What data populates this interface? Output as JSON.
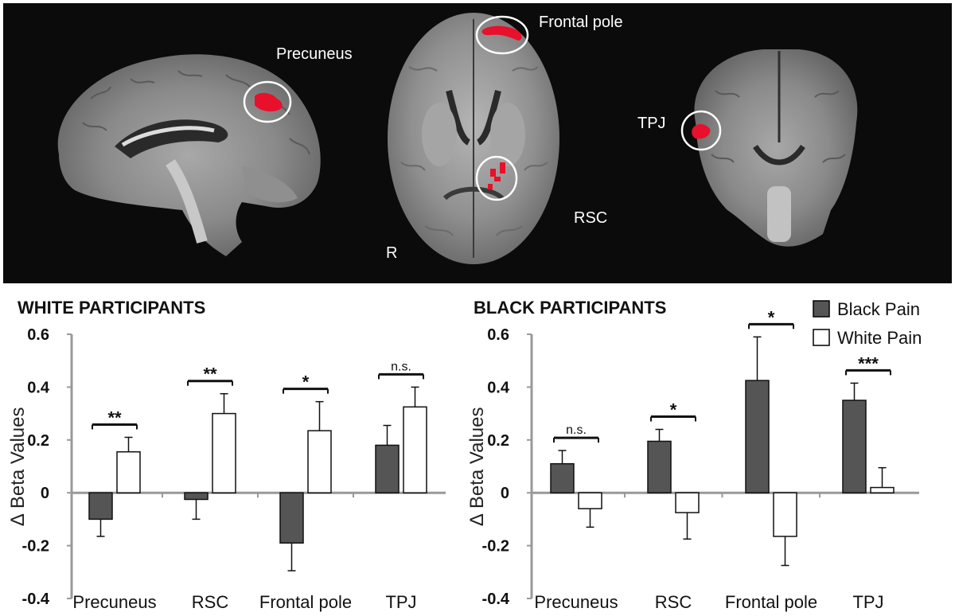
{
  "brain_labels": {
    "precuneus": "Precuneus",
    "frontal_pole": "Frontal pole",
    "tpj": "TPJ",
    "rsc": "RSC",
    "r": "R"
  },
  "colors": {
    "black_pain": "#555555",
    "white_pain": "#ffffff",
    "highlight": "#e8102a",
    "background_panel": "#0b0b0b"
  },
  "legend": {
    "black_pain": "Black Pain",
    "white_pain": "White Pain"
  },
  "chart_data": [
    {
      "type": "bar",
      "title": "WHITE PARTICIPANTS",
      "ylabel": "∆ Beta Values",
      "ylim": [
        -0.4,
        0.6
      ],
      "yticks": [
        "0.6",
        "0.4",
        "0.2",
        "0",
        "-0.2",
        "-0.4"
      ],
      "categories": [
        "Precuneus",
        "RSC",
        "Frontal pole",
        "TPJ"
      ],
      "series": [
        {
          "name": "Black Pain",
          "values": [
            -0.1,
            -0.025,
            -0.19,
            0.18
          ],
          "errors": [
            0.065,
            0.075,
            0.105,
            0.075
          ]
        },
        {
          "name": "White Pain",
          "values": [
            0.155,
            0.3,
            0.235,
            0.325
          ],
          "errors": [
            0.055,
            0.075,
            0.11,
            0.075
          ]
        }
      ],
      "significance": [
        "**",
        "**",
        "*",
        "n.s."
      ]
    },
    {
      "type": "bar",
      "title": "BLACK PARTICIPANTS",
      "ylabel": "∆ Beta Values",
      "ylim": [
        -0.4,
        0.6
      ],
      "yticks": [
        "0.6",
        "0.4",
        "0.2",
        "0",
        "-0.2",
        "-0.4"
      ],
      "categories": [
        "Precuneus",
        "RSC",
        "Frontal pole",
        "TPJ"
      ],
      "series": [
        {
          "name": "Black Pain",
          "values": [
            0.11,
            0.195,
            0.425,
            0.35
          ],
          "errors": [
            0.05,
            0.045,
            0.165,
            0.065
          ]
        },
        {
          "name": "White Pain",
          "values": [
            -0.06,
            -0.075,
            -0.165,
            0.02
          ],
          "errors": [
            0.07,
            0.1,
            0.11,
            0.075
          ]
        }
      ],
      "significance": [
        "n.s.",
        "*",
        "*",
        "***"
      ]
    }
  ]
}
